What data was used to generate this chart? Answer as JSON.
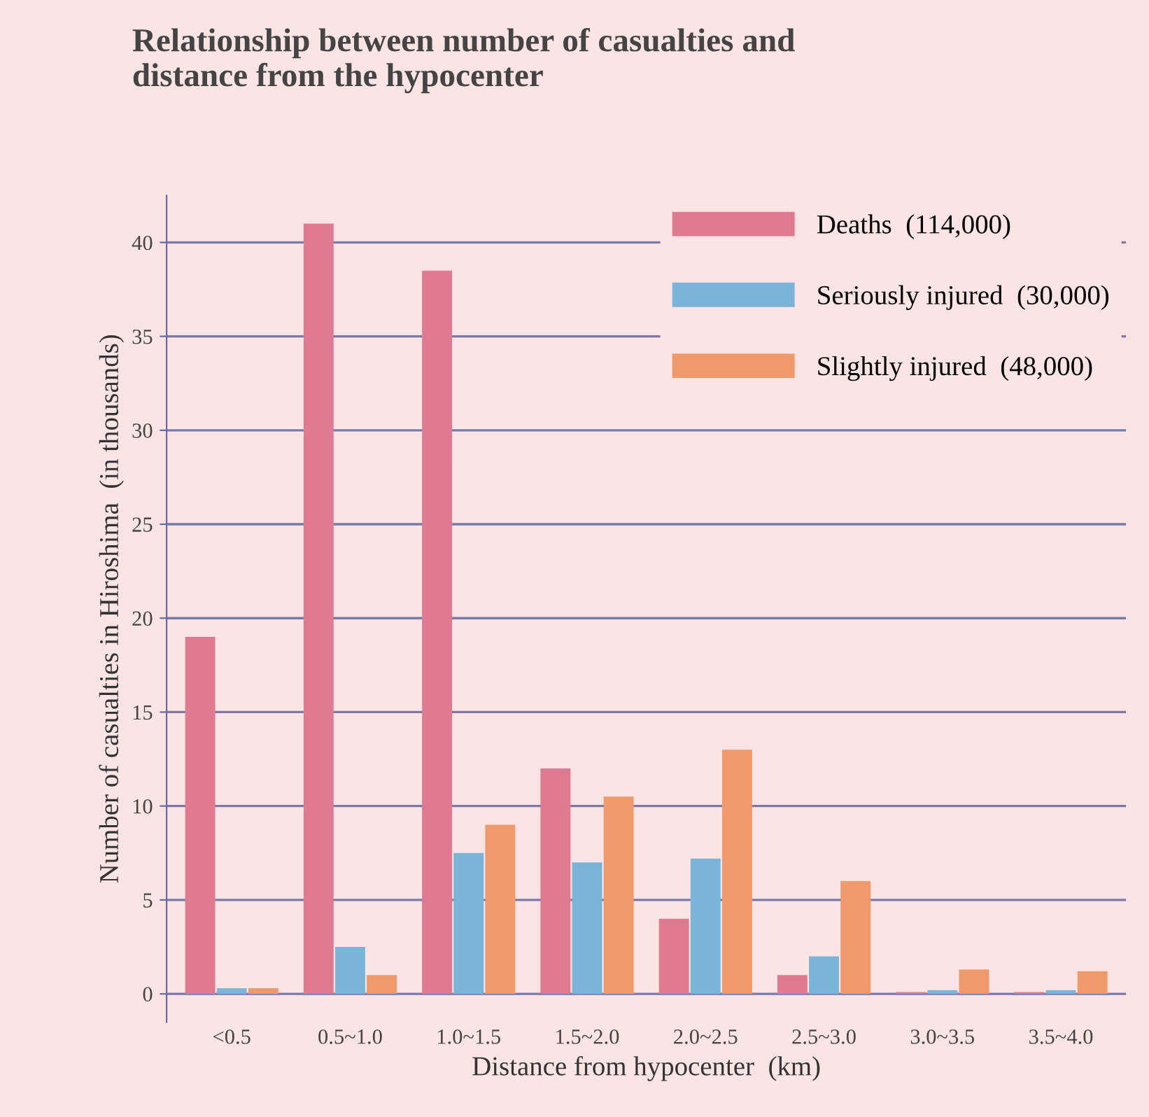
{
  "chart_data": {
    "type": "bar",
    "title": "Relationship between number of casualties and\ndistance from the hypocenter",
    "xlabel": "Distance from hypocenter  (km)",
    "ylabel": "Number of casualties in Hiroshima  (in thousands)",
    "categories": [
      "<0.5",
      "0.5~1.0",
      "1.0~1.5",
      "1.5~2.0",
      "2.0~2.5",
      "2.5~3.0",
      "3.0~3.5",
      "3.5~4.0"
    ],
    "series": [
      {
        "name": "Deaths  (114,000)",
        "color": "#e07a90",
        "values": [
          19,
          41,
          38.5,
          12,
          4,
          1,
          0.1,
          0.1
        ]
      },
      {
        "name": "Seriously injured  (30,000)",
        "color": "#7ab4d8",
        "values": [
          0.3,
          2.5,
          7.5,
          7,
          7.2,
          2,
          0.2,
          0.2
        ]
      },
      {
        "name": "Slightly injured  (48,000)",
        "color": "#f0996a",
        "values": [
          0.3,
          1,
          9,
          10.5,
          13,
          6,
          1.3,
          1.2
        ]
      }
    ],
    "ylim": [
      -1.5,
      42.5
    ],
    "yticks": [
      0,
      5,
      10,
      15,
      20,
      25,
      30,
      35,
      40
    ],
    "grid": "y",
    "legend": "top right"
  }
}
